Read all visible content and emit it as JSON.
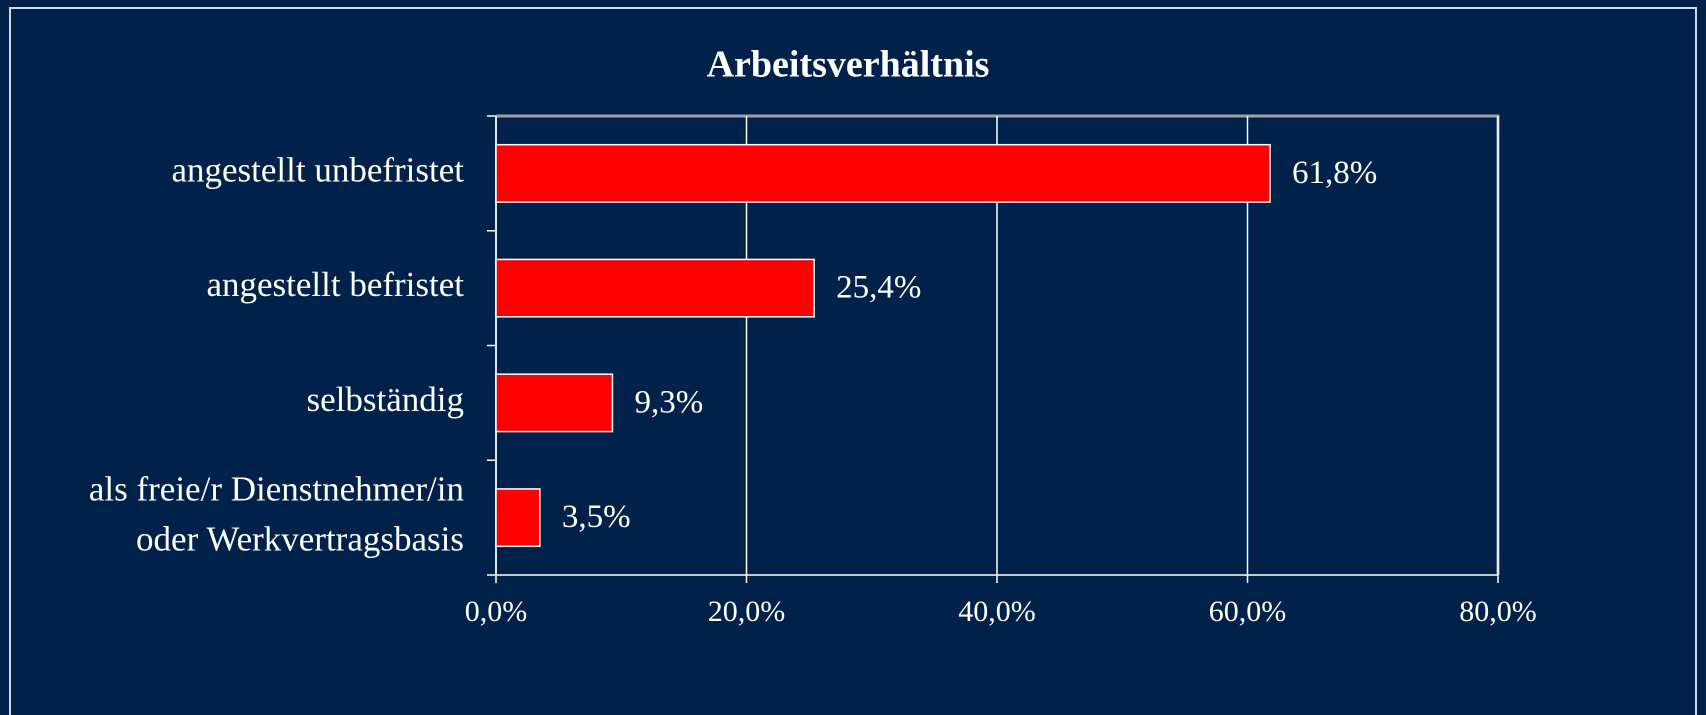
{
  "chart_data": {
    "type": "bar",
    "orientation": "horizontal",
    "title": "Arbeitsverhältnis",
    "categories": [
      "angestellt unbefristet",
      "angestellt befristet",
      "selbständig",
      "als freie/r Dienstnehmer/in\noder Werkvertragsbasis"
    ],
    "values": [
      61.8,
      25.4,
      9.3,
      3.5
    ],
    "value_labels": [
      "61,8%",
      "25,4%",
      "9,3%",
      "3,5%"
    ],
    "color": "#ff0000",
    "xlim": [
      0,
      80
    ],
    "xticks": [
      {
        "value": 0,
        "label": "0,0%"
      },
      {
        "value": 20,
        "label": "20,0%"
      },
      {
        "value": 40,
        "label": "40,0%"
      },
      {
        "value": 60,
        "label": "60,0%"
      },
      {
        "value": 80,
        "label": "80,0%"
      }
    ],
    "grid": true
  }
}
